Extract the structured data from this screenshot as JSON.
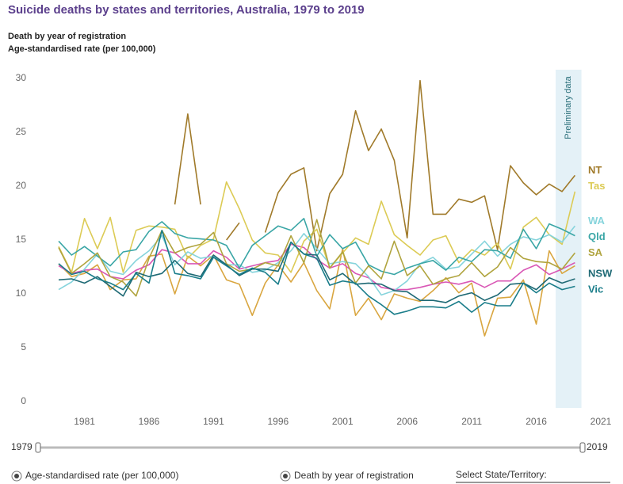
{
  "chart_data": {
    "type": "line",
    "title": "Suicide deaths by states and territories, Australia, 1979 to 2019",
    "subtitle": [
      "Death by year of registration",
      "Age-standardised rate (per 100,000)"
    ],
    "annotation": {
      "label": "Preliminary data",
      "from": 2017.5,
      "to": 2019.5
    },
    "x": [
      1979,
      1980,
      1981,
      1982,
      1983,
      1984,
      1985,
      1986,
      1987,
      1988,
      1989,
      1990,
      1991,
      1992,
      1993,
      1994,
      1995,
      1996,
      1997,
      1998,
      1999,
      2000,
      2001,
      2002,
      2003,
      2004,
      2005,
      2006,
      2007,
      2008,
      2009,
      2010,
      2011,
      2012,
      2013,
      2014,
      2015,
      2016,
      2017,
      2018,
      2019
    ],
    "xlim": [
      1979,
      2021
    ],
    "xticks": [
      1981,
      1986,
      1991,
      1996,
      2001,
      2006,
      2011,
      2016,
      2021
    ],
    "ylim": [
      0,
      30
    ],
    "yticks": [
      0,
      5,
      10,
      15,
      20,
      25,
      30
    ],
    "grid": false,
    "series": [
      {
        "color": "#d9a640",
        "values": [
          12.8,
          11.6,
          11.9,
          12.7,
          10.4,
          11.3,
          11.4,
          13.5,
          13.7,
          10.0,
          13.5,
          12.6,
          13.6,
          11.3,
          10.9,
          8.0,
          11.0,
          12.7,
          11.1,
          12.9,
          10.3,
          8.6,
          14.2,
          8.0,
          9.6,
          7.6,
          10.0,
          9.6,
          9.3,
          10.3,
          11.5,
          10.1,
          11.0,
          6.1,
          9.6,
          9.7,
          11.3,
          7.2,
          14.0,
          11.9,
          12.6
        ]
      },
      {
        "color": "#d957b5",
        "values": [
          12.6,
          11.9,
          12.2,
          12.3,
          11.6,
          11.4,
          12.2,
          12.7,
          14.1,
          13.8,
          12.8,
          12.8,
          14.0,
          13.4,
          12.3,
          12.6,
          12.9,
          13.1,
          14.6,
          14.3,
          13.2,
          12.4,
          12.8,
          11.9,
          11.5,
          10.6,
          10.4,
          10.4,
          10.6,
          10.9,
          11.1,
          10.9,
          11.2,
          10.6,
          11.2,
          11.2,
          12.2,
          12.7,
          11.8,
          12.3,
          12.9
        ]
      },
      {
        "name": "NT",
        "color": "#a07a2a",
        "values": [
          null,
          null,
          null,
          null,
          null,
          null,
          null,
          null,
          null,
          18.3,
          26.7,
          18.3,
          null,
          15.0,
          16.6,
          null,
          15.7,
          19.4,
          21.1,
          21.7,
          14.0,
          19.3,
          21.1,
          27.0,
          23.3,
          25.3,
          22.4,
          15.2,
          29.8,
          17.4,
          17.4,
          18.8,
          18.5,
          19.1,
          14.1,
          21.9,
          20.3,
          19.2,
          20.2,
          19.5,
          21.0
        ]
      },
      {
        "name": "Tas",
        "color": "#dccb55",
        "values": [
          14.4,
          12.0,
          17.0,
          14.2,
          17.1,
          12.0,
          15.9,
          16.3,
          16.2,
          16.0,
          13.3,
          14.5,
          15.1,
          20.4,
          17.9,
          15.0,
          13.8,
          13.6,
          12.0,
          14.9,
          16.0,
          12.4,
          13.8,
          15.2,
          14.6,
          18.6,
          15.5,
          14.5,
          13.6,
          15.0,
          15.4,
          12.9,
          14.1,
          13.6,
          14.7,
          12.3,
          16.2,
          17.1,
          15.5,
          14.6,
          19.5
        ]
      },
      {
        "name": "WA",
        "color": "#86d4dc",
        "values": [
          10.4,
          11.1,
          12.3,
          13.7,
          12.1,
          11.8,
          13.1,
          14.0,
          15.4,
          12.7,
          13.9,
          13.3,
          13.5,
          12.7,
          12.7,
          12.0,
          12.2,
          12.9,
          14.0,
          15.6,
          14.2,
          12.8,
          13.0,
          12.8,
          11.6,
          9.9,
          10.3,
          11.2,
          12.8,
          13.4,
          12.3,
          12.5,
          13.7,
          14.9,
          13.5,
          14.6,
          15.3,
          15.0,
          15.5,
          14.8,
          16.3
        ]
      },
      {
        "name": "Qld",
        "color": "#3aa6a6",
        "values": [
          14.9,
          13.6,
          14.4,
          13.5,
          12.6,
          13.9,
          14.1,
          15.8,
          16.7,
          15.6,
          15.2,
          15.1,
          15.0,
          14.5,
          12.4,
          14.5,
          15.4,
          16.3,
          15.9,
          17.0,
          13.5,
          15.5,
          14.2,
          14.8,
          12.7,
          12.1,
          11.8,
          12.4,
          12.8,
          13.1,
          12.2,
          13.4,
          13.0,
          14.1,
          14.0,
          13.3,
          16.0,
          14.2,
          16.5,
          16.0,
          15.4
        ]
      },
      {
        "name": "SA",
        "color": "#b0a43e",
        "values": [
          14.3,
          11.9,
          12.8,
          13.8,
          11.6,
          11.1,
          9.8,
          13.3,
          15.9,
          13.8,
          14.3,
          14.6,
          15.7,
          12.8,
          12.1,
          12.3,
          12.9,
          12.6,
          15.4,
          12.9,
          16.9,
          12.4,
          13.9,
          11.0,
          12.6,
          11.4,
          14.9,
          11.7,
          12.6,
          10.9,
          11.4,
          11.7,
          12.9,
          11.6,
          12.5,
          14.3,
          13.3,
          13.0,
          12.9,
          12.3,
          13.8
        ]
      },
      {
        "name": "NSW",
        "color": "#1f6a75",
        "values": [
          11.3,
          11.4,
          11.0,
          11.6,
          10.7,
          9.8,
          12.0,
          11.6,
          11.9,
          13.1,
          11.9,
          11.6,
          13.6,
          12.7,
          11.7,
          12.3,
          12.3,
          12.1,
          14.8,
          13.7,
          13.6,
          11.3,
          11.9,
          10.9,
          11.0,
          10.9,
          10.3,
          10.2,
          9.4,
          9.4,
          9.2,
          9.8,
          10.1,
          9.4,
          9.9,
          10.9,
          11.0,
          10.4,
          11.5,
          11.0,
          11.4
        ]
      },
      {
        "name": "Vic",
        "color": "#1a7d8a",
        "values": [
          12.8,
          11.8,
          12.1,
          11.4,
          11.0,
          10.4,
          11.9,
          11.0,
          15.9,
          11.9,
          11.7,
          11.4,
          13.4,
          12.6,
          11.8,
          12.4,
          12.0,
          10.9,
          14.8,
          13.7,
          13.3,
          10.8,
          11.2,
          11.0,
          9.8,
          9.0,
          8.1,
          8.4,
          8.8,
          8.8,
          8.7,
          9.3,
          8.3,
          9.2,
          8.9,
          8.9,
          11.0,
          10.1,
          11.0,
          10.4,
          10.7
        ]
      }
    ]
  },
  "ui": {
    "slider": {
      "min": 1979,
      "max": 2019
    },
    "radio": [
      "Age-standardised rate (per 100,000)",
      "Death by year of registration"
    ],
    "select_label": "Select State/Territory:"
  }
}
